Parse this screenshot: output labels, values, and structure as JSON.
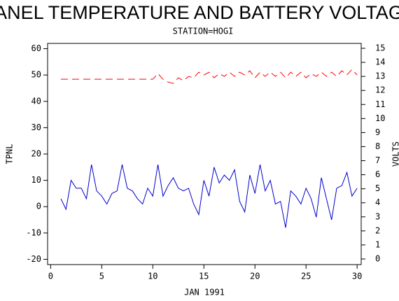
{
  "chart_data": {
    "type": "line",
    "title": "PANEL TEMPERATURE AND BATTERY VOLTAGE",
    "subtitle": "STATION=HOGI",
    "xlabel": "JAN 1991",
    "ylabel": "TPNL",
    "y2label": "VOLTS",
    "x": [
      1,
      1.5,
      2,
      2.5,
      3,
      3.5,
      4,
      4.5,
      5,
      5.5,
      6,
      6.5,
      7,
      7.5,
      8,
      8.5,
      9,
      9.5,
      10,
      10.5,
      11,
      11.5,
      12,
      12.5,
      13,
      13.5,
      14,
      14.5,
      15,
      15.5,
      16,
      16.5,
      17,
      17.5,
      18,
      18.5,
      19,
      19.5,
      20,
      20.5,
      21,
      21.5,
      22,
      22.5,
      23,
      23.5,
      24,
      24.5,
      25,
      25.5,
      26,
      26.5,
      27,
      27.5,
      28,
      28.5,
      29,
      29.5,
      30
    ],
    "series": [
      {
        "color": "#0000cc",
        "axis": "y",
        "dashed": false,
        "values": [
          3,
          -1,
          10,
          7,
          7,
          3,
          16,
          6,
          4,
          1,
          5,
          6,
          16,
          7,
          6,
          3,
          1,
          7,
          4,
          16,
          4,
          8,
          11,
          7,
          6,
          7,
          1,
          -3,
          10,
          4,
          15,
          9,
          12,
          10,
          14,
          2,
          -2,
          12,
          5,
          16,
          6,
          10,
          1,
          2,
          -8,
          6,
          4,
          1,
          7,
          3,
          -4,
          11,
          3,
          -5,
          7,
          8,
          13,
          4,
          7
        ]
      },
      {
        "color": "#ff0000",
        "axis": "y2",
        "dashed": true,
        "values": [
          12.8,
          12.8,
          12.8,
          12.8,
          12.8,
          12.8,
          12.8,
          12.8,
          12.8,
          12.8,
          12.8,
          12.8,
          12.8,
          12.8,
          12.8,
          12.8,
          12.8,
          12.8,
          12.8,
          13.2,
          12.8,
          12.6,
          12.5,
          12.9,
          12.7,
          13.0,
          12.9,
          13.3,
          13.1,
          13.3,
          12.9,
          13.2,
          13.0,
          13.3,
          13.0,
          13.3,
          13.1,
          13.4,
          12.9,
          13.3,
          13.0,
          13.3,
          13.0,
          13.3,
          12.9,
          13.3,
          13.0,
          13.3,
          12.9,
          13.2,
          13.0,
          13.3,
          13.0,
          13.3,
          13.0,
          13.4,
          13.1,
          13.5,
          13.1
        ]
      }
    ],
    "xlim": [
      -0.3,
      30.4
    ],
    "xticks": [
      0,
      5,
      10,
      15,
      20,
      25,
      30
    ],
    "ylim": [
      -22,
      62
    ],
    "yticks": [
      -20,
      -10,
      0,
      10,
      20,
      30,
      40,
      50,
      60
    ],
    "y2lim": [
      -0.4,
      15.35
    ],
    "y2ticks": [
      0,
      1,
      2,
      3,
      4,
      5,
      6,
      7,
      8,
      9,
      10,
      11,
      12,
      13,
      14,
      15
    ]
  }
}
